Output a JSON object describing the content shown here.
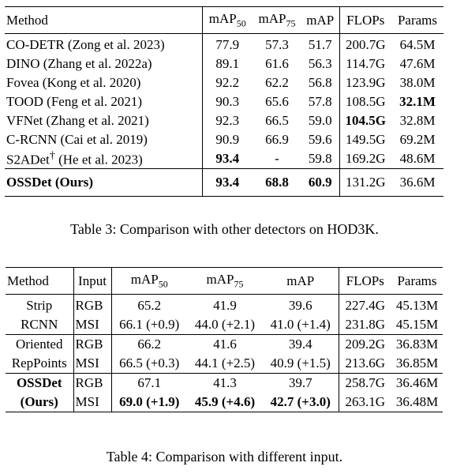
{
  "table3": {
    "columns": [
      {
        "text": "Method"
      },
      {
        "text": "mAP",
        "sub": "50"
      },
      {
        "text": "mAP",
        "sub": "75"
      },
      {
        "text": "mAP"
      },
      {
        "text": "FLOPs"
      },
      {
        "text": "Params"
      }
    ],
    "rows": [
      {
        "method": "CO-DETR (Zong et al. 2023)",
        "values": [
          "77.9",
          "57.3",
          "51.7",
          "200.7G",
          "64.5M"
        ]
      },
      {
        "method": "DINO (Zhang et al. 2022a)",
        "values": [
          "89.1",
          "61.6",
          "56.3",
          "114.7G",
          "47.6M"
        ]
      },
      {
        "method": "Fovea (Kong et al. 2020)",
        "values": [
          "92.2",
          "62.2",
          "56.8",
          "123.9G",
          "38.0M"
        ]
      },
      {
        "method": "TOOD (Feng et al. 2021)",
        "values": [
          "90.3",
          "65.6",
          "57.8",
          "108.5G",
          "32.1M"
        ]
      },
      {
        "method": "VFNet (Zhang et al. 2021)",
        "values": [
          "92.3",
          "66.5",
          "59.0",
          "104.5G",
          "32.8M"
        ]
      },
      {
        "method": "C-RCNN (Cai et al. 2019)",
        "values": [
          "90.9",
          "66.9",
          "59.6",
          "149.5G",
          "69.2M"
        ]
      },
      {
        "method": "S2ADet",
        "sup": "†",
        "cite": "(He et al. 2023)",
        "values": [
          "93.4",
          "-",
          "59.8",
          "169.2G",
          "48.6M"
        ]
      }
    ],
    "ours": {
      "method": "OSSDet (Ours)",
      "values": [
        "93.4",
        "68.8",
        "60.9",
        "131.2G",
        "36.6M"
      ]
    },
    "caption": "Table 3: Comparison with other detectors on HOD3K."
  },
  "table4": {
    "columns": [
      {
        "text": "Method"
      },
      {
        "text": "Input"
      },
      {
        "text": "mAP",
        "sub": "50"
      },
      {
        "text": "mAP",
        "sub": "75"
      },
      {
        "text": "mAP"
      },
      {
        "text": "FLOPs"
      },
      {
        "text": "Params"
      }
    ],
    "groups": [
      {
        "method": [
          "Strip",
          "RCNN"
        ],
        "rows": [
          {
            "input": "RGB",
            "values": [
              "65.2",
              "41.9",
              "39.6",
              "227.4G",
              "45.13M"
            ]
          },
          {
            "input": "MSI",
            "values": [
              "66.1 (+0.9)",
              "44.0 (+2.1)",
              "41.0 (+1.4)",
              "231.8G",
              "45.15M"
            ]
          }
        ]
      },
      {
        "method": [
          "Oriented",
          "RepPoints"
        ],
        "rows": [
          {
            "input": "RGB",
            "values": [
              "66.2",
              "41.6",
              "39.4",
              "209.2G",
              "36.83M"
            ]
          },
          {
            "input": "MSI",
            "values": [
              "66.5 (+0.3)",
              "44.1 (+2.5)",
              "40.9 (+1.5)",
              "213.6G",
              "36.85M"
            ]
          }
        ]
      },
      {
        "method": [
          "OSSDet",
          "(Ours)"
        ],
        "rows": [
          {
            "input": "RGB",
            "values": [
              "67.1",
              "41.3",
              "39.7",
              "258.7G",
              "36.46M"
            ]
          },
          {
            "input": "MSI",
            "values": [
              "69.0 (+1.9)",
              "45.9 (+4.6)",
              "42.7 (+3.0)",
              "263.1G",
              "36.48M"
            ]
          }
        ]
      }
    ],
    "caption": "Table 4: Comparison with different input."
  }
}
